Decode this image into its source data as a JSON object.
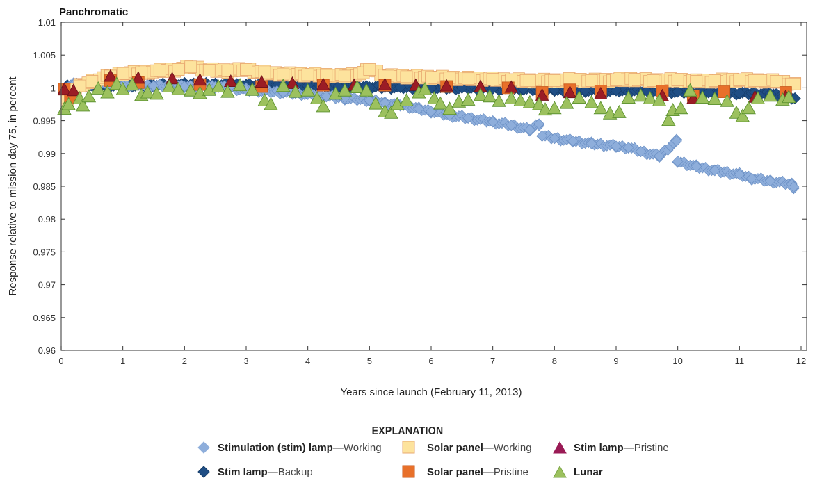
{
  "chart_data": {
    "type": "scatter",
    "title": "Panchromatic",
    "xlabel": "Years since launch (February 11, 2013)",
    "ylabel": "Response relative to mission day 75, in percent",
    "xlim": [
      0,
      12
    ],
    "ylim": [
      0.96,
      1.01
    ],
    "xticks": [
      "0",
      "1",
      "2",
      "3",
      "4",
      "5",
      "6",
      "7",
      "8",
      "9",
      "10",
      "11",
      "12"
    ],
    "yticks": [
      "0.96",
      "0.965",
      "0.97",
      "0.975",
      "0.98",
      "0.985",
      "0.99",
      "0.995",
      "1",
      "1.005",
      "1.01"
    ],
    "grid": false,
    "legend_title": "EXPLANATION",
    "legend_position": "bottom",
    "series": [
      {
        "name": "Stimulation (stim) lamp—Working",
        "label_bold": "Stimulation (stim) lamp",
        "label_light": "—Working",
        "marker": "diamond",
        "color": "#8eaedb",
        "stroke": "#6a8fc4",
        "points": [
          [
            0.05,
            1.0
          ],
          [
            0.2,
            1.0005
          ],
          [
            0.4,
            1.0003
          ],
          [
            0.7,
            1.0007
          ],
          [
            1.0,
            1.0004
          ],
          [
            1.5,
            1.0003
          ],
          [
            2.0,
            1.0002
          ],
          [
            2.5,
            1.0002
          ],
          [
            3.0,
            0.9997
          ],
          [
            3.3,
            0.9995
          ],
          [
            3.6,
            0.9993
          ],
          [
            4.0,
            0.999
          ],
          [
            4.3,
            0.9987
          ],
          [
            4.6,
            0.9984
          ],
          [
            5.0,
            0.9981
          ],
          [
            5.25,
            0.9977
          ],
          [
            5.5,
            0.9974
          ],
          [
            5.8,
            0.9968
          ],
          [
            6.0,
            0.9964
          ],
          [
            6.3,
            0.9958
          ],
          [
            6.6,
            0.9954
          ],
          [
            7.0,
            0.9948
          ],
          [
            7.3,
            0.9943
          ],
          [
            7.6,
            0.9936
          ],
          [
            7.75,
            0.9945
          ],
          [
            7.8,
            0.9927
          ],
          [
            8.0,
            0.9923
          ],
          [
            8.3,
            0.9919
          ],
          [
            8.6,
            0.9915
          ],
          [
            9.0,
            0.9911
          ],
          [
            9.2,
            0.9909
          ],
          [
            9.4,
            0.9903
          ],
          [
            9.7,
            0.9896
          ],
          [
            9.98,
            0.9919
          ],
          [
            10.0,
            0.9888
          ],
          [
            10.3,
            0.988
          ],
          [
            10.6,
            0.9874
          ],
          [
            11.0,
            0.9868
          ],
          [
            11.2,
            0.9862
          ],
          [
            11.5,
            0.9858
          ],
          [
            11.85,
            0.9853
          ],
          [
            11.88,
            0.9849
          ]
        ]
      },
      {
        "name": "Stim lamp—Backup",
        "label_bold": "Stim lamp",
        "label_light": "—Backup",
        "marker": "diamond",
        "color": "#1f4e85",
        "stroke": "#163d6a",
        "points": [
          [
            0.1,
            1.0004
          ],
          [
            0.5,
            1.0004
          ],
          [
            1.0,
            1.0004
          ],
          [
            1.5,
            1.0004
          ],
          [
            2.0,
            1.0005
          ],
          [
            2.5,
            1.0005
          ],
          [
            3.0,
            1.0004
          ],
          [
            3.5,
            1.0003
          ],
          [
            4.0,
            1.0003
          ],
          [
            4.5,
            1.0002
          ],
          [
            5.0,
            1.0001
          ],
          [
            5.5,
            1.0001
          ],
          [
            6.0,
            1.0
          ],
          [
            6.5,
            1.0
          ],
          [
            7.0,
            0.9999
          ],
          [
            7.5,
            0.9998
          ],
          [
            8.0,
            0.9997
          ],
          [
            8.5,
            0.9996
          ],
          [
            9.0,
            0.9996
          ],
          [
            9.5,
            0.9995
          ],
          [
            10.0,
            0.9994
          ],
          [
            10.5,
            0.9993
          ],
          [
            11.0,
            0.9992
          ],
          [
            11.5,
            0.9991
          ],
          [
            11.9,
            0.9984
          ]
        ]
      },
      {
        "name": "Solar panel—Working",
        "label_bold": "Solar panel",
        "label_light": "—Working",
        "marker": "square",
        "color": "#fde39d",
        "stroke": "#e8a870",
        "points": [
          [
            0.1,
            0.9985
          ],
          [
            0.3,
            1.0003
          ],
          [
            0.5,
            1.001
          ],
          [
            0.8,
            1.0018
          ],
          [
            1.0,
            1.0022
          ],
          [
            1.3,
            1.0023
          ],
          [
            1.6,
            1.0026
          ],
          [
            1.9,
            1.0028
          ],
          [
            2.1,
            1.0032
          ],
          [
            2.4,
            1.0027
          ],
          [
            2.7,
            1.0026
          ],
          [
            3.0,
            1.0028
          ],
          [
            3.3,
            1.0023
          ],
          [
            3.6,
            1.0021
          ],
          [
            4.0,
            1.002
          ],
          [
            4.3,
            1.0019
          ],
          [
            4.6,
            1.0018
          ],
          [
            4.9,
            1.0023
          ],
          [
            5.0,
            1.0028
          ],
          [
            5.3,
            1.0018
          ],
          [
            5.6,
            1.0017
          ],
          [
            6.0,
            1.0016
          ],
          [
            6.3,
            1.0015
          ],
          [
            6.6,
            1.0014
          ],
          [
            7.0,
            1.0013
          ],
          [
            7.3,
            1.0012
          ],
          [
            7.6,
            1.0011
          ],
          [
            8.0,
            1.0011
          ],
          [
            8.3,
            1.0012
          ],
          [
            8.6,
            1.0011
          ],
          [
            9.0,
            1.0012
          ],
          [
            9.3,
            1.0013
          ],
          [
            9.6,
            1.0011
          ],
          [
            10.0,
            1.0012
          ],
          [
            10.3,
            1.001
          ],
          [
            10.6,
            1.0011
          ],
          [
            11.0,
            1.0012
          ],
          [
            11.3,
            1.0011
          ],
          [
            11.6,
            1.001
          ],
          [
            11.9,
            1.0006
          ]
        ]
      },
      {
        "name": "Solar panel—Pristine",
        "label_bold": "Solar panel",
        "label_light": "—Pristine",
        "marker": "square",
        "color": "#e8702a",
        "stroke": "#c85a1c",
        "points": [
          [
            0.05,
            0.9998
          ],
          [
            0.15,
            0.9985
          ],
          [
            0.8,
            1.0011
          ],
          [
            1.25,
            1.0008
          ],
          [
            2.25,
            1.0005
          ],
          [
            3.25,
            1.0002
          ],
          [
            4.25,
            1.0004
          ],
          [
            5.25,
            1.0004
          ],
          [
            6.25,
            1.0002
          ],
          [
            7.25,
            1.0
          ],
          [
            7.8,
            0.9993
          ],
          [
            8.25,
            0.9997
          ],
          [
            8.75,
            0.9995
          ],
          [
            9.75,
            0.9995
          ],
          [
            10.25,
            0.9988
          ],
          [
            10.75,
            0.9994
          ],
          [
            11.75,
            0.9993
          ]
        ]
      },
      {
        "name": "Stim lamp—Pristine",
        "label_bold": "Stim lamp",
        "label_light": "—Pristine",
        "marker": "triangle",
        "color": "#9b1c25",
        "stroke": "#6e1219",
        "legend_color": "#9a1a55",
        "points": [
          [
            0.05,
            0.9998
          ],
          [
            0.2,
            0.9996
          ],
          [
            0.8,
            1.0018
          ],
          [
            1.25,
            1.0015
          ],
          [
            1.8,
            1.0014
          ],
          [
            2.25,
            1.0012
          ],
          [
            2.75,
            1.001
          ],
          [
            3.25,
            1.0009
          ],
          [
            3.75,
            1.0007
          ],
          [
            4.25,
            1.0005
          ],
          [
            4.75,
            1.0004
          ],
          [
            5.25,
            1.0005
          ],
          [
            5.75,
            1.0004
          ],
          [
            6.25,
            1.0003
          ],
          [
            6.8,
            1.0002
          ],
          [
            7.3,
            1.0001
          ],
          [
            7.8,
            0.9989
          ],
          [
            8.25,
            0.9993
          ],
          [
            8.75,
            0.9991
          ],
          [
            9.75,
            0.9988
          ],
          [
            10.25,
            0.9984
          ],
          [
            11.25,
            0.9986
          ],
          [
            11.75,
            0.9987
          ]
        ]
      },
      {
        "name": "Lunar",
        "label_bold": "Lunar",
        "label_light": "",
        "marker": "triangle",
        "color": "#9cc15e",
        "stroke": "#5d9231",
        "points": [
          [
            0.05,
            0.9968
          ],
          [
            0.12,
            0.9975
          ],
          [
            0.3,
            0.9984
          ],
          [
            0.35,
            0.9973
          ],
          [
            0.45,
            0.9987
          ],
          [
            0.6,
            0.9999
          ],
          [
            0.75,
            0.9993
          ],
          [
            0.9,
            1.0006
          ],
          [
            1.0,
            0.9998
          ],
          [
            1.15,
            1.0005
          ],
          [
            1.3,
            0.9989
          ],
          [
            1.4,
            0.9993
          ],
          [
            1.55,
            0.9991
          ],
          [
            1.75,
            1.0002
          ],
          [
            1.9,
            0.9998
          ],
          [
            2.1,
            0.9996
          ],
          [
            2.25,
            0.9992
          ],
          [
            2.4,
            0.9997
          ],
          [
            2.55,
            1.0002
          ],
          [
            2.7,
            0.9994
          ],
          [
            2.9,
            1.0004
          ],
          [
            3.1,
            0.9997
          ],
          [
            3.3,
            0.9981
          ],
          [
            3.4,
            0.9975
          ],
          [
            3.6,
            1.0003
          ],
          [
            3.8,
            0.9994
          ],
          [
            4.0,
            0.9996
          ],
          [
            4.15,
            0.9984
          ],
          [
            4.25,
            0.9972
          ],
          [
            4.45,
            0.9991
          ],
          [
            4.6,
            0.9996
          ],
          [
            4.8,
            1.0001
          ],
          [
            4.95,
            0.9996
          ],
          [
            5.1,
            0.9976
          ],
          [
            5.25,
            0.9964
          ],
          [
            5.35,
            0.9962
          ],
          [
            5.45,
            0.9975
          ],
          [
            5.6,
            0.9981
          ],
          [
            5.8,
            0.9993
          ],
          [
            5.9,
            0.9998
          ],
          [
            6.05,
            0.9984
          ],
          [
            6.15,
            0.9976
          ],
          [
            6.3,
            0.9968
          ],
          [
            6.45,
            0.9979
          ],
          [
            6.6,
            0.9982
          ],
          [
            6.8,
            0.9989
          ],
          [
            6.95,
            0.9987
          ],
          [
            7.1,
            0.998
          ],
          [
            7.3,
            0.9984
          ],
          [
            7.45,
            0.9981
          ],
          [
            7.6,
            0.9978
          ],
          [
            7.75,
            0.9975
          ],
          [
            7.85,
            0.9967
          ],
          [
            8.0,
            0.9969
          ],
          [
            8.2,
            0.9977
          ],
          [
            8.4,
            0.9985
          ],
          [
            8.6,
            0.9978
          ],
          [
            8.75,
            0.9969
          ],
          [
            8.9,
            0.9961
          ],
          [
            9.05,
            0.9963
          ],
          [
            9.2,
            0.9985
          ],
          [
            9.4,
            0.9988
          ],
          [
            9.55,
            0.9984
          ],
          [
            9.7,
            0.9981
          ],
          [
            9.85,
            0.9951
          ],
          [
            9.92,
            0.9966
          ],
          [
            10.05,
            0.9969
          ],
          [
            10.2,
            0.9996
          ],
          [
            10.4,
            0.9985
          ],
          [
            10.6,
            0.9983
          ],
          [
            10.8,
            0.998
          ],
          [
            10.95,
            0.9962
          ],
          [
            11.05,
            0.9957
          ],
          [
            11.15,
            0.9969
          ],
          [
            11.3,
            0.9984
          ],
          [
            11.5,
            0.9988
          ],
          [
            11.7,
            0.9982
          ],
          [
            11.8,
            0.9986
          ]
        ]
      }
    ]
  }
}
